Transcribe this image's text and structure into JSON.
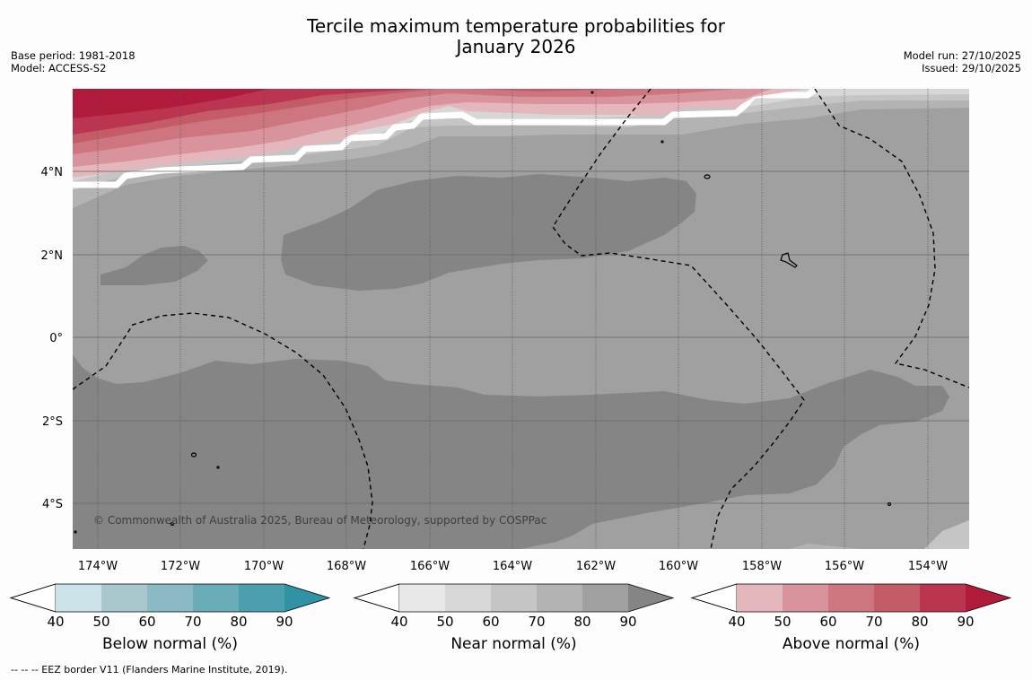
{
  "title_line1": "Tercile maximum temperature probabilities for",
  "title_line2": "January 2026",
  "meta_left": {
    "base_period": "Base period: 1981-2018",
    "model": "Model: ACCESS-S2"
  },
  "meta_right": {
    "model_run": "Model run: 27/10/2025",
    "issued": "Issued: 29/10/2025"
  },
  "map": {
    "lon_labels": [
      "174°W",
      "172°W",
      "170°W",
      "168°W",
      "166°W",
      "164°W",
      "162°W",
      "160°W",
      "158°W",
      "156°W",
      "154°W"
    ],
    "lat_labels": [
      "4°N",
      "2°N",
      "0°",
      "2°S",
      "4°S"
    ],
    "copyright": "© Commonwealth of Australia 2025, Bureau of Meteorology, supported by COSPPac"
  },
  "colorbars": [
    {
      "label": "Below normal (%)",
      "ticks": [
        "40",
        "50",
        "60",
        "70",
        "80",
        "90"
      ],
      "colors": [
        "#ffffff",
        "#cbe2e8",
        "#a8c8ce",
        "#8bb9c5",
        "#6bacb9",
        "#4b9fae",
        "#2f93a4"
      ]
    },
    {
      "label": "Near normal (%)",
      "ticks": [
        "40",
        "50",
        "60",
        "70",
        "80",
        "90"
      ],
      "colors": [
        "#ffffff",
        "#e8e8e8",
        "#d7d7d7",
        "#c5c5c5",
        "#b3b3b3",
        "#a0a0a0",
        "#858585"
      ]
    },
    {
      "label": "Above normal (%)",
      "ticks": [
        "40",
        "50",
        "60",
        "70",
        "80",
        "90"
      ],
      "colors": [
        "#ffffff",
        "#e4b7bd",
        "#d8939c",
        "#cd7680",
        "#c45c68",
        "#bb3550",
        "#b01b3c"
      ]
    }
  ],
  "footnote": "--  --  -- EEZ border V11 (Flanders Marine Institute, 2019)."
}
